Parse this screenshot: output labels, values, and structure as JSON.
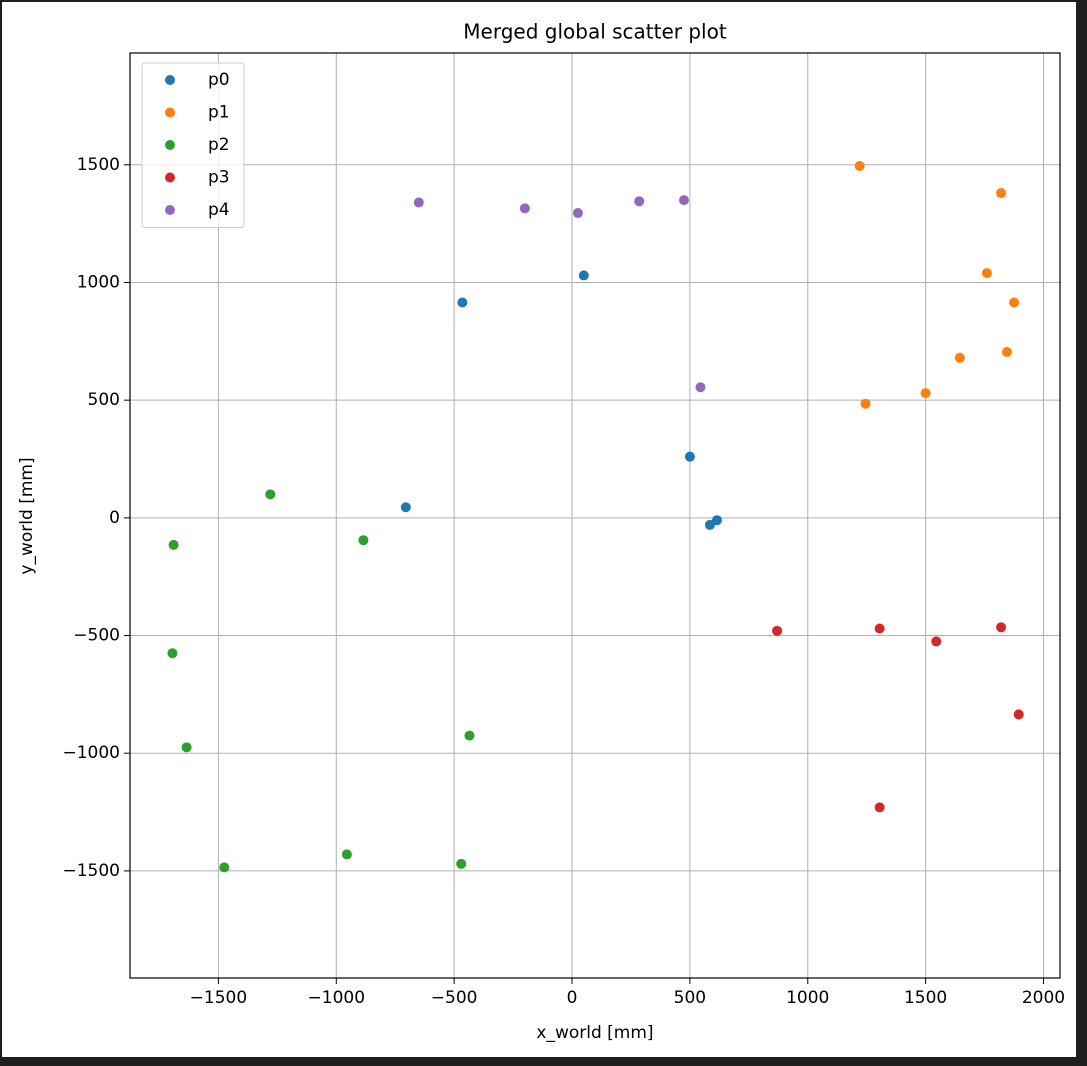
{
  "chart_data": {
    "type": "scatter",
    "title": "Merged global scatter plot",
    "xlabel": "x_world [mm]",
    "ylabel": "y_world [mm]",
    "xlim": [
      -1875,
      2070
    ],
    "ylim": [
      -1955,
      1975
    ],
    "xticks": [
      {
        "value": -1500,
        "label": "−1500"
      },
      {
        "value": -1000,
        "label": "−1000"
      },
      {
        "value": -500,
        "label": "−500"
      },
      0,
      500,
      1000,
      1500,
      2000
    ],
    "yticks": [
      {
        "value": -1500,
        "label": "−1500"
      },
      {
        "value": -1000,
        "label": "−1000"
      },
      {
        "value": -500,
        "label": "−500"
      },
      0,
      500,
      1000,
      1500
    ],
    "grid": true,
    "legend": "upper left",
    "series": [
      {
        "name": "p0",
        "color": "#1f77b4",
        "x": [
          -465,
          50,
          500,
          -705,
          585,
          615
        ],
        "values": [
          915,
          1030,
          260,
          45,
          -30,
          -10
        ]
      },
      {
        "name": "p1",
        "color": "#ff7f0e",
        "x": [
          1220,
          1820,
          1760,
          1875,
          1845,
          1645,
          1500,
          1245
        ],
        "values": [
          1495,
          1380,
          1040,
          915,
          705,
          680,
          530,
          485
        ]
      },
      {
        "name": "p2",
        "color": "#2ca02c",
        "x": [
          -1280,
          -1690,
          -885,
          -1695,
          -1635,
          -435,
          -1475,
          -955,
          -470
        ],
        "values": [
          100,
          -115,
          -95,
          -575,
          -975,
          -925,
          -1485,
          -1430,
          -1470
        ]
      },
      {
        "name": "p3",
        "color": "#d62728",
        "x": [
          870,
          1305,
          1545,
          1820,
          1895,
          1305
        ],
        "values": [
          -480,
          -470,
          -525,
          -465,
          -835,
          -1230
        ]
      },
      {
        "name": "p4",
        "color": "#9467bd",
        "x": [
          -650,
          -200,
          25,
          285,
          475,
          545
        ],
        "values": [
          1340,
          1315,
          1295,
          1345,
          1350,
          555
        ]
      }
    ]
  }
}
